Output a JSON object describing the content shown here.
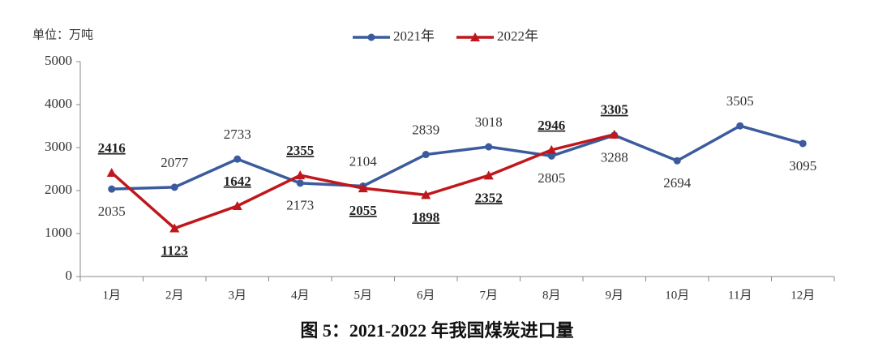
{
  "chart_data": {
    "type": "line",
    "title": "图 5：2021-2022 年我国煤炭进口量",
    "y_label": "单位：万吨",
    "categories": [
      "1月",
      "2月",
      "3月",
      "4月",
      "5月",
      "6月",
      "7月",
      "8月",
      "9月",
      "10月",
      "11月",
      "12月"
    ],
    "series": [
      {
        "name": "2021年",
        "color": "#3b5b9d",
        "marker": "circle",
        "values": [
          2035,
          2077,
          2733,
          2173,
          2104,
          2839,
          3018,
          2805,
          3288,
          2694,
          3505,
          3095
        ]
      },
      {
        "name": "2022年",
        "color": "#c0171c",
        "marker": "triangle",
        "values": [
          2416,
          1123,
          1642,
          2355,
          2055,
          1898,
          2352,
          2946,
          3305,
          null,
          null,
          null
        ]
      }
    ],
    "ylim": [
      0,
      5000
    ],
    "yticks": [
      0,
      1000,
      2000,
      3000,
      4000,
      5000
    ],
    "grid": false,
    "legend": "top"
  }
}
